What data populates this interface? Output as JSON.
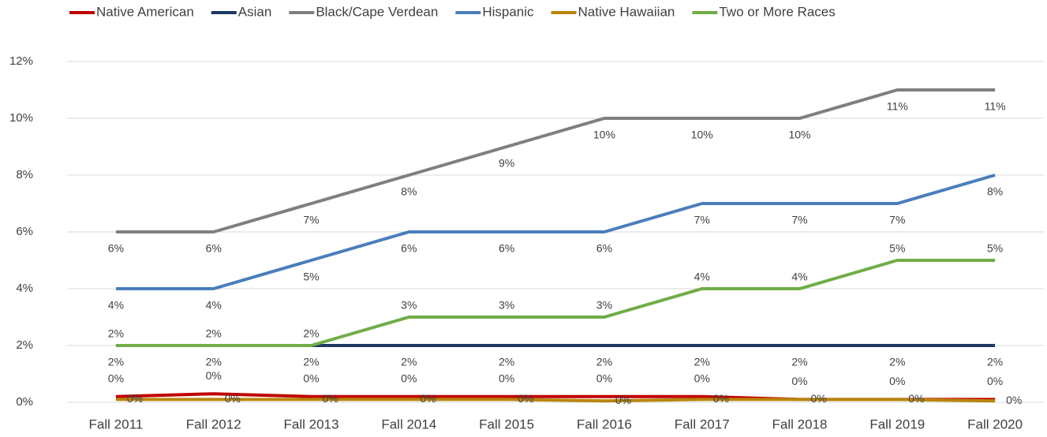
{
  "chart_data": {
    "type": "line",
    "categories": [
      "Fall 2011",
      "Fall 2012",
      "Fall 2013",
      "Fall 2014",
      "Fall 2015",
      "Fall 2016",
      "Fall 2017",
      "Fall 2018",
      "Fall 2019",
      "Fall 2020"
    ],
    "ylim": [
      0,
      12
    ],
    "yticks": [
      {
        "value": 0,
        "label": "0%"
      },
      {
        "value": 2,
        "label": "2%"
      },
      {
        "value": 4,
        "label": "4%"
      },
      {
        "value": 6,
        "label": "6%"
      },
      {
        "value": 8,
        "label": "8%"
      },
      {
        "value": 10,
        "label": "10%"
      },
      {
        "value": 12,
        "label": "12%"
      }
    ],
    "grid": true,
    "legend": "top",
    "series": [
      {
        "name": "Native American",
        "color": "#c00000",
        "values": [
          0.2,
          0.3,
          0.2,
          0.2,
          0.2,
          0.2,
          0.2,
          0.1,
          0.1,
          0.1
        ],
        "value_labels": [
          "0%",
          "0%",
          "0%",
          "0%",
          "0%",
          "0%",
          "0%",
          "0%",
          "0%",
          "0%"
        ]
      },
      {
        "name": "Asian",
        "color": "#1f3864",
        "values": [
          2,
          2,
          2,
          2,
          2,
          2,
          2,
          2,
          2,
          2
        ],
        "value_labels": [
          "2%",
          "2%",
          "2%",
          "2%",
          "2%",
          "2%",
          "2%",
          "2%",
          "2%",
          "2%"
        ]
      },
      {
        "name": "Black/Cape Verdean",
        "color": "#7f7f7f",
        "values": [
          6,
          6,
          7,
          8,
          9,
          10,
          10,
          10,
          11,
          11
        ],
        "value_labels": [
          "6%",
          "6%",
          "7%",
          "8%",
          "9%",
          "10%",
          "10%",
          "10%",
          "11%",
          "11%"
        ]
      },
      {
        "name": "Hispanic",
        "color": "#4a7ebb",
        "values": [
          4,
          4,
          5,
          6,
          6,
          6,
          7,
          7,
          7,
          8
        ],
        "value_labels": [
          "4%",
          "4%",
          "5%",
          "6%",
          "6%",
          "6%",
          "7%",
          "7%",
          "7%",
          "8%"
        ]
      },
      {
        "name": "Native Hawaiian",
        "color": "#b8860b",
        "values": [
          0.1,
          0.1,
          0.1,
          0.1,
          0.1,
          0.05,
          0.1,
          0.1,
          0.1,
          0.05
        ],
        "value_labels": [
          "0%",
          "0%",
          "0%",
          "0%",
          "0%",
          "0%",
          "0%",
          "0%",
          "0%",
          "0%"
        ]
      },
      {
        "name": "Two or More Races",
        "color": "#70ad47",
        "values": [
          2,
          2,
          2,
          3,
          3,
          3,
          4,
          4,
          5,
          5
        ],
        "value_labels": [
          "2%",
          "2%",
          "2%",
          "3%",
          "3%",
          "3%",
          "4%",
          "4%",
          "5%",
          "5%"
        ]
      }
    ]
  }
}
